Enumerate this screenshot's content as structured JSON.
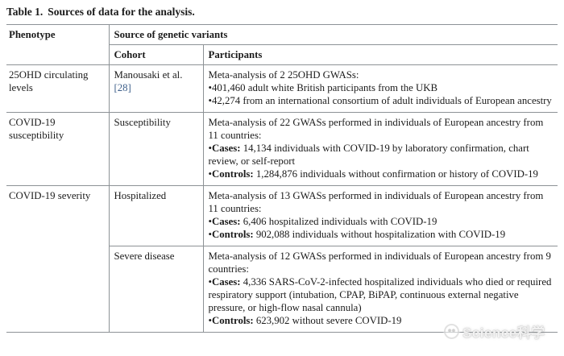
{
  "title": {
    "label": "Table 1.",
    "caption": "Sources of data for the analysis."
  },
  "table": {
    "headers": {
      "phenotype": "Phenotype",
      "source": "Source of genetic variants",
      "cohort": "Cohort",
      "participants": "Participants"
    },
    "rows": [
      {
        "phenotype": {
          "text": "25OHD circulating levels",
          "rowspan": 1
        },
        "cohort": {
          "text": "Manousaki et al.",
          "ref": "[28]"
        },
        "participants": {
          "intro": "Meta-analysis of 2 25OHD GWASs:",
          "bullets": [
            {
              "label": "",
              "text": "401,460 adult white British participants from the UKB"
            },
            {
              "label": "",
              "text": "42,274 from an international consortium of adult individuals of European ancestry"
            }
          ]
        }
      },
      {
        "phenotype": {
          "text": "COVID-19 susceptibility",
          "rowspan": 1
        },
        "cohort": {
          "text": "Susceptibility"
        },
        "participants": {
          "intro": "Meta-analysis of 22 GWASs performed in individuals of European ancestry from 11 countries:",
          "bullets": [
            {
              "label": "Cases:",
              "text": "14,134 individuals with COVID-19 by laboratory confirmation, chart review, or self-report"
            },
            {
              "label": "Controls:",
              "text": "1,284,876 individuals without confirmation or history of COVID-19"
            }
          ]
        }
      },
      {
        "phenotype": {
          "text": "COVID-19 severity",
          "rowspan": 2
        },
        "cohort": {
          "text": "Hospitalized"
        },
        "participants": {
          "intro": "Meta-analysis of 13 GWASs performed in individuals of European ancestry from 11 countries:",
          "bullets": [
            {
              "label": "Cases:",
              "text": "6,406 hospitalized individuals with COVID-19"
            },
            {
              "label": "Controls:",
              "text": "902,088 individuals without hospitalization with COVID-19"
            }
          ]
        }
      },
      {
        "phenotype": null,
        "cohort": {
          "text": "Severe disease"
        },
        "participants": {
          "intro": "Meta-analysis of 12 GWASs performed in individuals of European ancestry from 9 countries:",
          "bullets": [
            {
              "label": "Cases:",
              "text": "4,336 SARS-CoV-2-infected hospitalized individuals who died or required respiratory support (intubation, CPAP, BiPAP, continuous external negative pressure, or high-flow nasal cannula)"
            },
            {
              "label": "Controls:",
              "text": "623,902 without severe COVID-19"
            }
          ]
        }
      }
    ]
  },
  "watermark": {
    "icon": "science-logo-icon",
    "text": "Science科学"
  },
  "colors": {
    "text": "#1b1b1b",
    "line": "#8d9296",
    "link": "#3e5f8a",
    "background": "#ffffff"
  }
}
